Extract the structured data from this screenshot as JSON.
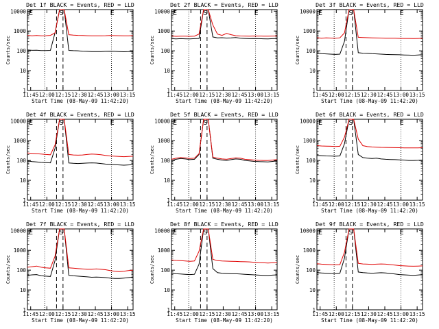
{
  "chart_data": [
    {
      "type": "line",
      "title": "Det 1f BLACK = Events, RED = LLD",
      "xlabel": "Start Time (08-May-09 11:42:20)",
      "ylabel": "Counts/sec",
      "x_ticks": [
        "11:45",
        "12:00",
        "12:15",
        "12:30",
        "12:45",
        "13:00",
        "13:15"
      ],
      "y_ticks": [
        "1",
        "10",
        "100",
        "1000",
        "10000"
      ],
      "ylim": [
        1,
        12000
      ],
      "log_y": true,
      "markers": [
        "E",
        "S",
        "E"
      ],
      "dotted_lines_x": [
        "11:58",
        "13:00"
      ],
      "dashed_lines_x": [
        "12:09",
        "12:15"
      ],
      "series": [
        {
          "name": "Events",
          "color": "#000000",
          "values": [
            110,
            106,
            108,
            104,
            104,
            105,
            800,
            12000,
            12000,
            105,
            102,
            100,
            96,
            94,
            92,
            91,
            92,
            94,
            96,
            94,
            92,
            90,
            92,
            96
          ]
        },
        {
          "name": "LLD",
          "color": "#e00000",
          "values": [
            600,
            570,
            590,
            570,
            580,
            600,
            800,
            12000,
            12000,
            650,
            620,
            600,
            590,
            580,
            570,
            570,
            575,
            580,
            590,
            585,
            580,
            570,
            575,
            585
          ]
        }
      ]
    },
    {
      "type": "line",
      "title": "Det 2f BLACK = Events, RED = LLD",
      "xlabel": "Start Time (08-May-09 11:42:20)",
      "ylabel": "Counts/sec",
      "x_ticks": [
        "11:45",
        "12:00",
        "12:15",
        "12:30",
        "12:45",
        "13:00",
        "13:15"
      ],
      "y_ticks": [
        "1",
        "10",
        "100",
        "1000",
        "10000"
      ],
      "ylim": [
        1,
        12000
      ],
      "log_y": true,
      "markers": [
        "E",
        "S",
        "E"
      ],
      "dotted_lines_x": [
        "11:58",
        "13:00"
      ],
      "dashed_lines_x": [
        "12:09",
        "12:15"
      ],
      "series": [
        {
          "name": "Events",
          "color": "#000000",
          "values": [
            410,
            400,
            410,
            405,
            400,
            410,
            420,
            12000,
            12000,
            500,
            450,
            460,
            440,
            450,
            470,
            430,
            420,
            410,
            415,
            410,
            405,
            400,
            410,
            415
          ]
        },
        {
          "name": "LLD",
          "color": "#e00000",
          "values": [
            560,
            540,
            550,
            545,
            540,
            550,
            700,
            12000,
            12000,
            2000,
            700,
            600,
            750,
            650,
            580,
            560,
            555,
            550,
            560,
            555,
            550,
            545,
            555,
            560
          ]
        }
      ]
    },
    {
      "type": "line",
      "title": "Det 3f BLACK = Events, RED = LLD",
      "xlabel": "Start Time (08-May-09 11:42:20)",
      "ylabel": "Counts/sec",
      "x_ticks": [
        "11:45",
        "12:00",
        "12:15",
        "12:30",
        "12:45",
        "13:00",
        "13:15"
      ],
      "y_ticks": [
        "1",
        "10",
        "100",
        "1000",
        "10000"
      ],
      "ylim": [
        1,
        12000
      ],
      "log_y": true,
      "markers": [
        "E",
        "S",
        "E"
      ],
      "dotted_lines_x": [
        "11:58",
        "13:00"
      ],
      "dashed_lines_x": [
        "12:09",
        "12:15"
      ],
      "series": [
        {
          "name": "Events",
          "color": "#000000",
          "values": [
            80,
            72,
            70,
            68,
            66,
            68,
            300,
            12000,
            12000,
            80,
            76,
            75,
            72,
            70,
            68,
            66,
            65,
            64,
            63,
            62,
            61,
            60,
            62,
            64
          ]
        },
        {
          "name": "LLD",
          "color": "#e00000",
          "values": [
            460,
            430,
            450,
            440,
            430,
            450,
            800,
            12000,
            12000,
            480,
            470,
            460,
            450,
            445,
            440,
            435,
            430,
            430,
            425,
            420,
            420,
            415,
            420,
            430
          ]
        }
      ]
    },
    {
      "type": "line",
      "title": "Det 4f BLACK = Events, RED = LLD",
      "xlabel": "Start Time (08-May-09 11:42:20)",
      "ylabel": "Counts/sec",
      "x_ticks": [
        "11:45",
        "12:00",
        "12:15",
        "12:30",
        "12:45",
        "13:00",
        "13:15"
      ],
      "y_ticks": [
        "1",
        "10",
        "100",
        "1000",
        "10000"
      ],
      "ylim": [
        1,
        12000
      ],
      "log_y": true,
      "markers": [
        "E",
        "S",
        "E"
      ],
      "dotted_lines_x": [
        "11:58",
        "13:00"
      ],
      "dashed_lines_x": [
        "12:09",
        "12:15"
      ],
      "series": [
        {
          "name": "Events",
          "color": "#000000",
          "values": [
            95,
            88,
            85,
            80,
            78,
            76,
            400,
            12000,
            12000,
            75,
            72,
            70,
            72,
            74,
            76,
            74,
            70,
            66,
            64,
            62,
            60,
            58,
            60,
            62
          ]
        },
        {
          "name": "LLD",
          "color": "#e00000",
          "values": [
            240,
            230,
            220,
            210,
            200,
            195,
            600,
            12000,
            12000,
            200,
            190,
            185,
            190,
            200,
            210,
            205,
            195,
            180,
            170,
            165,
            160,
            155,
            160,
            165
          ]
        }
      ]
    },
    {
      "type": "line",
      "title": "Det 5f BLACK = Events, RED = LLD",
      "xlabel": "Start Time (08-May-09 11:42:20)",
      "ylabel": "Counts/sec",
      "x_ticks": [
        "11:45",
        "12:00",
        "12:15",
        "12:30",
        "12:45",
        "13:00",
        "13:15"
      ],
      "y_ticks": [
        "1",
        "10",
        "100",
        "1000",
        "10000"
      ],
      "ylim": [
        1,
        12000
      ],
      "log_y": true,
      "markers": [
        "E",
        "S",
        "E"
      ],
      "dotted_lines_x": [
        "11:58",
        "13:00"
      ],
      "dashed_lines_x": [
        "12:09",
        "12:15"
      ],
      "series": [
        {
          "name": "Events",
          "color": "#000000",
          "values": [
            100,
            115,
            125,
            120,
            110,
            115,
            200,
            12000,
            12000,
            130,
            115,
            105,
            100,
            110,
            120,
            115,
            100,
            95,
            90,
            88,
            86,
            85,
            90,
            95
          ]
        },
        {
          "name": "LLD",
          "color": "#e00000",
          "values": [
            115,
            130,
            140,
            135,
            125,
            130,
            220,
            12000,
            12000,
            150,
            130,
            120,
            115,
            125,
            135,
            130,
            115,
            110,
            105,
            102,
            100,
            100,
            105,
            110
          ]
        }
      ]
    },
    {
      "type": "line",
      "title": "Det 6f BLACK = Events, RED = LLD",
      "xlabel": "Start Time (08-May-09 11:42:20)",
      "ylabel": "Counts/sec",
      "x_ticks": [
        "11:45",
        "12:00",
        "12:15",
        "12:30",
        "12:45",
        "13:00",
        "13:15"
      ],
      "y_ticks": [
        "1",
        "10",
        "100",
        "1000",
        "10000"
      ],
      "ylim": [
        1,
        12000
      ],
      "log_y": true,
      "markers": [
        "E",
        "S",
        "E"
      ],
      "dotted_lines_x": [
        "11:58",
        "13:00"
      ],
      "dashed_lines_x": [
        "12:09",
        "12:15"
      ],
      "series": [
        {
          "name": "Events",
          "color": "#000000",
          "values": [
            180,
            175,
            170,
            168,
            165,
            170,
            700,
            12000,
            12000,
            200,
            140,
            130,
            125,
            130,
            120,
            115,
            112,
            110,
            108,
            105,
            100,
            100,
            102,
            105
          ]
        },
        {
          "name": "LLD",
          "color": "#e00000",
          "values": [
            560,
            540,
            530,
            520,
            510,
            520,
            1500,
            12000,
            12000,
            1200,
            560,
            500,
            480,
            470,
            460,
            455,
            450,
            445,
            440,
            435,
            430,
            430,
            435,
            440
          ]
        }
      ]
    },
    {
      "type": "line",
      "title": "Det 7f BLACK = Events, RED = LLD",
      "xlabel": "Start Time (08-May-09 11:42:20)",
      "ylabel": "Counts/sec",
      "x_ticks": [
        "11:45",
        "12:00",
        "12:15",
        "12:30",
        "12:45",
        "13:00",
        "13:15"
      ],
      "y_ticks": [
        "1",
        "10",
        "100",
        "1000",
        "10000"
      ],
      "ylim": [
        1,
        12000
      ],
      "log_y": true,
      "markers": [
        "E",
        "S",
        "E"
      ],
      "dotted_lines_x": [
        "11:58",
        "13:00"
      ],
      "dashed_lines_x": [
        "12:09",
        "12:15"
      ],
      "series": [
        {
          "name": "Events",
          "color": "#000000",
          "values": [
            55,
            58,
            60,
            52,
            50,
            48,
            300,
            12000,
            12000,
            55,
            52,
            50,
            48,
            46,
            44,
            45,
            44,
            42,
            40,
            38,
            38,
            40,
            42,
            45
          ]
        },
        {
          "name": "LLD",
          "color": "#e00000",
          "values": [
            140,
            150,
            160,
            140,
            130,
            125,
            500,
            12000,
            12000,
            130,
            125,
            120,
            115,
            110,
            110,
            115,
            110,
            105,
            95,
            88,
            85,
            88,
            95,
            100
          ]
        }
      ]
    },
    {
      "type": "line",
      "title": "Det 8f BLACK = Events, RED = LLD",
      "xlabel": "Start Time (08-May-09 11:42:20)",
      "ylabel": "Counts/sec",
      "x_ticks": [
        "11:45",
        "12:00",
        "12:15",
        "12:30",
        "12:45",
        "13:00",
        "13:15"
      ],
      "y_ticks": [
        "1",
        "10",
        "100",
        "1000",
        "10000"
      ],
      "ylim": [
        1,
        12000
      ],
      "log_y": true,
      "markers": [
        "E",
        "S",
        "E"
      ],
      "dotted_lines_x": [
        "11:58",
        "13:00"
      ],
      "dashed_lines_x": [
        "12:09",
        "12:15"
      ],
      "series": [
        {
          "name": "Events",
          "color": "#000000",
          "values": [
            70,
            66,
            64,
            62,
            60,
            62,
            200,
            12000,
            12000,
            120,
            75,
            70,
            68,
            66,
            66,
            64,
            62,
            60,
            58,
            56,
            55,
            54,
            56,
            58
          ]
        },
        {
          "name": "LLD",
          "color": "#e00000",
          "values": [
            330,
            310,
            300,
            290,
            280,
            290,
            900,
            12000,
            12000,
            350,
            300,
            290,
            285,
            280,
            275,
            270,
            265,
            260,
            250,
            240,
            235,
            230,
            235,
            240
          ]
        }
      ]
    },
    {
      "type": "line",
      "title": "Det 9f BLACK = Events, RED = LLD",
      "xlabel": "Start Time (08-May-09 11:42:20)",
      "ylabel": "Counts/sec",
      "x_ticks": [
        "11:45",
        "12:00",
        "12:15",
        "12:30",
        "12:45",
        "13:00",
        "13:15"
      ],
      "y_ticks": [
        "1",
        "10",
        "100",
        "1000",
        "10000"
      ],
      "ylim": [
        1,
        12000
      ],
      "log_y": true,
      "markers": [
        "E",
        "S",
        "E"
      ],
      "dotted_lines_x": [
        "11:58",
        "13:00"
      ],
      "dashed_lines_x": [
        "12:09",
        "12:15"
      ],
      "series": [
        {
          "name": "Events",
          "color": "#000000",
          "values": [
            75,
            72,
            70,
            68,
            67,
            70,
            400,
            12000,
            12000,
            80,
            75,
            72,
            70,
            72,
            74,
            72,
            68,
            64,
            60,
            58,
            56,
            55,
            57,
            60
          ]
        },
        {
          "name": "LLD",
          "color": "#e00000",
          "values": [
            210,
            200,
            195,
            190,
            185,
            190,
            800,
            12000,
            12000,
            220,
            205,
            200,
            195,
            200,
            205,
            200,
            190,
            180,
            170,
            165,
            160,
            158,
            160,
            165
          ]
        }
      ]
    }
  ]
}
